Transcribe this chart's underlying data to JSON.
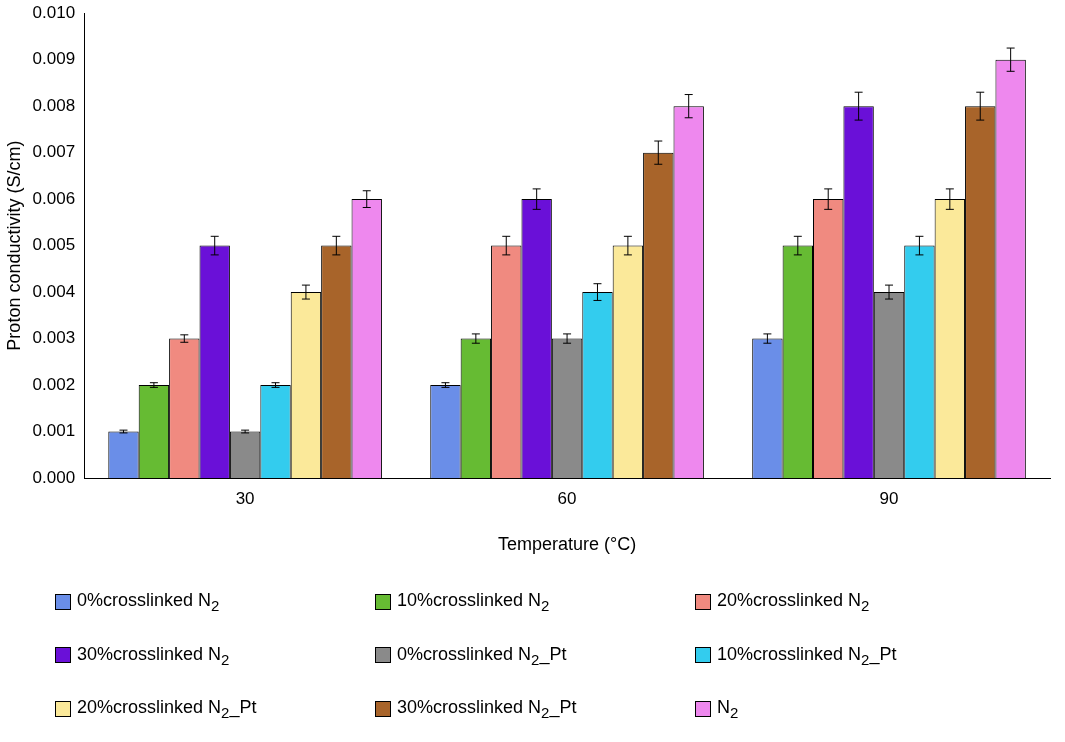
{
  "chart_data": {
    "type": "bar",
    "xlabel": "Temperature (°C)",
    "ylabel": "Proton conductivity (S/cm)",
    "categories": [
      "30",
      "60",
      "90"
    ],
    "ylim": [
      0,
      0.01
    ],
    "yticks": [
      {
        "value": 0,
        "label": "0.000"
      },
      {
        "value": 0.001,
        "label": "0.001"
      },
      {
        "value": 0.002,
        "label": "0.002"
      },
      {
        "value": 0.003,
        "label": "0.003"
      },
      {
        "value": 0.004,
        "label": "0.004"
      },
      {
        "value": 0.005,
        "label": "0.005"
      },
      {
        "value": 0.006,
        "label": "0.006"
      },
      {
        "value": 0.007,
        "label": "0.007"
      },
      {
        "value": 0.008,
        "label": "0.008"
      },
      {
        "value": 0.009,
        "label": "0.009"
      },
      {
        "value": 0.01,
        "label": "0.010"
      }
    ],
    "grid": false,
    "legend": "bottom",
    "series": [
      {
        "name": "0%crosslinked N$_{2}$",
        "color": "#6a8ee8",
        "values": [
          0.001,
          0.002,
          0.003
        ],
        "errors": [
          3e-05,
          5e-05,
          0.0001
        ]
      },
      {
        "name": "10%crosslinked N$_{2}$",
        "color": "#66bb33",
        "values": [
          0.002,
          0.003,
          0.005
        ],
        "errors": [
          5e-05,
          0.0001,
          0.0002
        ]
      },
      {
        "name": "20%crosslinked N$_{2}$",
        "color": "#f08a80",
        "values": [
          0.003,
          0.005,
          0.006
        ],
        "errors": [
          8e-05,
          0.0002,
          0.00022
        ]
      },
      {
        "name": "30%crosslinked N$_{2}$",
        "color": "#6a10d8",
        "values": [
          0.005,
          0.006,
          0.008
        ],
        "errors": [
          0.0002,
          0.00022,
          0.0003
        ]
      },
      {
        "name": "0%crosslinked N$_{2}$_Pt",
        "color": "#8a8a8a",
        "values": [
          0.001,
          0.003,
          0.004
        ],
        "errors": [
          3e-05,
          0.0001,
          0.00015
        ]
      },
      {
        "name": "10%crosslinked N$_{2}$_Pt",
        "color": "#33ccee",
        "values": [
          0.002,
          0.004,
          0.005
        ],
        "errors": [
          5e-05,
          0.00018,
          0.0002
        ]
      },
      {
        "name": "20%crosslinked N$_{2}$_Pt",
        "color": "#fbe99a",
        "values": [
          0.004,
          0.005,
          0.006
        ],
        "errors": [
          0.00015,
          0.0002,
          0.00022
        ]
      },
      {
        "name": "30%crosslinked N$_{2}$_Pt",
        "color": "#a8642a",
        "values": [
          0.005,
          0.007,
          0.008
        ],
        "errors": [
          0.0002,
          0.00025,
          0.0003
        ]
      },
      {
        "name": "N$_{2}$",
        "color": "#ee88ee",
        "values": [
          0.006,
          0.008,
          0.009
        ],
        "errors": [
          0.00018,
          0.00025,
          0.00025
        ]
      }
    ]
  }
}
